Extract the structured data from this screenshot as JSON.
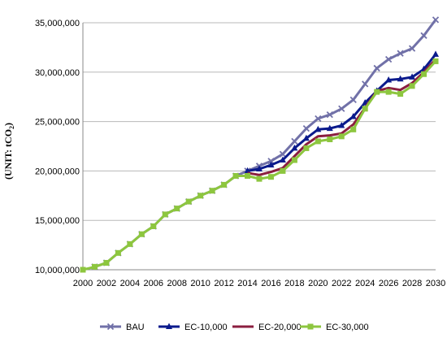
{
  "chart_data": {
    "type": "line",
    "ylabel": "(UNIT: tCO",
    "ylabel_sub": "2",
    "ylabel_end": ")",
    "ylim": [
      10000000,
      35000000
    ],
    "yticks": [
      10000000,
      15000000,
      20000000,
      25000000,
      30000000,
      35000000
    ],
    "ytick_labels": [
      "10,000,000",
      "15,000,000",
      "20,000,000",
      "25,000,000",
      "30,000,000",
      "35,000,000"
    ],
    "xlim": [
      2000,
      2030
    ],
    "xticks": [
      2000,
      2002,
      2004,
      2006,
      2008,
      2010,
      2012,
      2014,
      2016,
      2018,
      2020,
      2022,
      2024,
      2026,
      2028,
      2030
    ],
    "grid": "horizontal",
    "legend_position": "bottom",
    "series": [
      {
        "name": "BAU",
        "color": "#7171a8",
        "marker": "x",
        "x": [
          2001,
          2002,
          2003,
          2004,
          2005,
          2006,
          2007,
          2008,
          2009,
          2010,
          2011,
          2012,
          2013,
          2014,
          2015,
          2016,
          2017,
          2018,
          2019,
          2020,
          2021,
          2022,
          2023,
          2024,
          2025,
          2026,
          2027,
          2028,
          2029,
          2030
        ],
        "values": [
          10300000,
          10700000,
          11700000,
          12600000,
          13600000,
          14400000,
          15600000,
          16200000,
          16900000,
          17500000,
          18000000,
          18600000,
          19500000,
          20000000,
          20500000,
          21000000,
          21700000,
          23000000,
          24300000,
          25300000,
          25700000,
          26300000,
          27200000,
          28800000,
          30400000,
          31300000,
          31900000,
          32400000,
          33700000,
          35300000
        ]
      },
      {
        "name": "EC-10,000",
        "color": "#0a1a8c",
        "marker": "triangle",
        "x": [
          2014,
          2015,
          2016,
          2017,
          2018,
          2019,
          2020,
          2021,
          2022,
          2023,
          2024,
          2025,
          2026,
          2027,
          2028,
          2029,
          2030
        ],
        "values": [
          20000000,
          20200000,
          20600000,
          21100000,
          22300000,
          23300000,
          24200000,
          24300000,
          24600000,
          25500000,
          26900000,
          28100000,
          29200000,
          29300000,
          29500000,
          30300000,
          31800000
        ]
      },
      {
        "name": "EC-20,000",
        "color": "#8b1e3f",
        "marker": "none",
        "x": [
          2014,
          2015,
          2016,
          2017,
          2018,
          2019,
          2020,
          2021,
          2022,
          2023,
          2024,
          2025,
          2026,
          2027,
          2028,
          2029,
          2030
        ],
        "values": [
          19800000,
          19600000,
          19900000,
          20300000,
          21500000,
          22700000,
          23500000,
          23600000,
          23800000,
          24700000,
          26400000,
          28100000,
          28400000,
          28200000,
          28900000,
          30000000,
          31300000
        ]
      },
      {
        "name": "EC-30,000",
        "color": "#8dc63f",
        "marker": "square",
        "x": [
          2000,
          2001,
          2002,
          2003,
          2004,
          2005,
          2006,
          2007,
          2008,
          2009,
          2010,
          2011,
          2012,
          2013,
          2014,
          2015,
          2016,
          2017,
          2018,
          2019,
          2020,
          2021,
          2022,
          2023,
          2024,
          2025,
          2026,
          2027,
          2028,
          2029,
          2030
        ],
        "values": [
          10000000,
          10300000,
          10700000,
          11700000,
          12600000,
          13600000,
          14400000,
          15600000,
          16200000,
          16900000,
          17500000,
          18000000,
          18600000,
          19500000,
          19500000,
          19200000,
          19400000,
          20000000,
          21100000,
          22300000,
          23000000,
          23200000,
          23500000,
          24200000,
          26300000,
          28000000,
          28000000,
          27800000,
          28600000,
          29800000,
          31100000
        ]
      }
    ]
  }
}
